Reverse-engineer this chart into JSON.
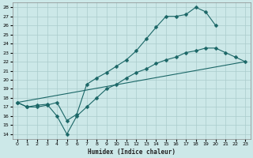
{
  "title": "",
  "xlabel": "Humidex (Indice chaleur)",
  "bg_color": "#cce8e8",
  "grid_color": "#aacccc",
  "line_color": "#1a6666",
  "xlim": [
    -0.5,
    23.5
  ],
  "ylim": [
    13.5,
    28.5
  ],
  "xticks": [
    0,
    1,
    2,
    3,
    4,
    5,
    6,
    7,
    8,
    9,
    10,
    11,
    12,
    13,
    14,
    15,
    16,
    17,
    18,
    19,
    20,
    21,
    22,
    23
  ],
  "yticks": [
    14,
    15,
    16,
    17,
    18,
    19,
    20,
    21,
    22,
    23,
    24,
    25,
    26,
    27,
    28
  ],
  "line1_x": [
    0,
    1,
    2,
    3,
    4,
    5,
    6,
    7,
    8,
    9,
    10,
    11,
    12,
    13,
    14,
    15,
    16,
    17,
    18,
    19,
    20
  ],
  "line1_y": [
    17.5,
    17.0,
    17.0,
    17.2,
    17.5,
    15.5,
    16.2,
    19.5,
    20.2,
    20.8,
    21.5,
    22.2,
    23.2,
    24.5,
    25.8,
    27.0,
    27.0,
    27.2,
    28.0,
    27.5,
    26.0
  ],
  "line2_x": [
    0,
    1,
    2,
    3,
    4,
    5,
    6,
    7,
    8,
    9,
    10,
    11,
    12,
    13,
    14,
    15,
    16,
    17,
    18,
    19,
    20,
    21,
    22,
    23
  ],
  "line2_y": [
    17.5,
    17.0,
    17.2,
    17.3,
    16.0,
    14.0,
    16.0,
    17.0,
    18.0,
    19.0,
    19.5,
    20.2,
    20.8,
    21.2,
    21.8,
    22.2,
    22.5,
    23.0,
    23.2,
    23.5,
    23.5,
    23.0,
    22.5,
    22.0
  ],
  "line3_x": [
    0,
    23
  ],
  "line3_y": [
    17.5,
    22.0
  ],
  "markersize": 2.5
}
